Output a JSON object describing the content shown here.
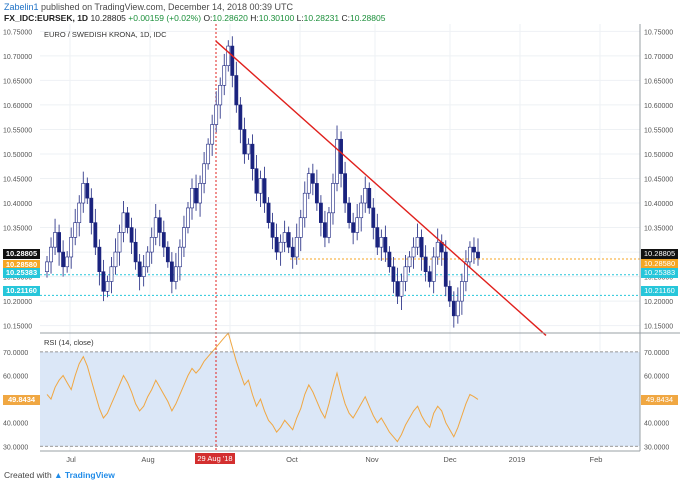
{
  "header": {
    "author": "Zabelin1",
    "published_text": " published on TradingView.com, December 14, 2018 00:39 UTC",
    "symbol": "FX_IDC:EURSEK, 1D",
    "last_value": "10.28805",
    "change": "+0.00159 (+0.02%)",
    "open_label": "O:",
    "open": "10.28620",
    "high_label": "H:",
    "high": "10.30100",
    "low_label": "L:",
    "low": "10.28231",
    "close_label": "C:",
    "close": "10.28805"
  },
  "pane_title": "EURO / SWEDISH KRONA, 1D, IDC",
  "rsi_title": "RSI (14, close)",
  "price_tags": {
    "current": "10.28805",
    "orange": "10.28580",
    "cyan_upper": "10.25383",
    "cyan_lower": "10.21160"
  },
  "rsi_tag": "49.8434",
  "highlight_date": "29 Aug '18",
  "footer": {
    "prefix": "Created with",
    "brand": "TradingView"
  },
  "colors": {
    "up_candle": "#ffffff",
    "down_candle": "#1a237e",
    "trendline": "#e0201c",
    "support_orange": "#f5a623",
    "support_cyan": "#26c6da",
    "rsi_line": "#f0a742",
    "rsi_band": "#dbe7f7",
    "current_tag": "#111111"
  },
  "chart_data": [
    {
      "type": "candlestick",
      "title": "EURO / SWEDISH KRONA, 1D, IDC",
      "y_ticks": [
        "10.75000",
        "10.70000",
        "10.65000",
        "10.60000",
        "10.55000",
        "10.50000",
        "10.45000",
        "10.40000",
        "10.35000",
        "10.30000",
        "10.25000",
        "10.20000",
        "10.15000"
      ],
      "ylim": [
        10.135,
        10.765
      ],
      "x_ticks": [
        "Jul",
        "Aug",
        "Oct",
        "Nov",
        "Dec",
        "2019",
        "Feb"
      ],
      "series": [
        {
          "name": "EURSEK",
          "close": [
            10.28,
            10.31,
            10.34,
            10.3,
            10.27,
            10.29,
            10.33,
            10.36,
            10.4,
            10.44,
            10.41,
            10.36,
            10.31,
            10.26,
            10.22,
            10.24,
            10.27,
            10.3,
            10.34,
            10.38,
            10.35,
            10.32,
            10.28,
            10.25,
            10.27,
            10.3,
            10.33,
            10.37,
            10.34,
            10.31,
            10.28,
            10.24,
            10.27,
            10.31,
            10.35,
            10.39,
            10.43,
            10.4,
            10.44,
            10.48,
            10.52,
            10.56,
            10.6,
            10.64,
            10.68,
            10.72,
            10.66,
            10.6,
            10.55,
            10.5,
            10.52,
            10.47,
            10.42,
            10.45,
            10.4,
            10.36,
            10.33,
            10.3,
            10.32,
            10.34,
            10.31,
            10.29,
            10.33,
            10.37,
            10.42,
            10.46,
            10.44,
            10.4,
            10.36,
            10.33,
            10.38,
            10.44,
            10.53,
            10.46,
            10.4,
            10.36,
            10.34,
            10.37,
            10.4,
            10.43,
            10.39,
            10.35,
            10.31,
            10.33,
            10.3,
            10.27,
            10.24,
            10.21,
            10.24,
            10.27,
            10.29,
            10.31,
            10.33,
            10.29,
            10.26,
            10.24,
            10.29,
            10.32,
            10.3,
            10.23,
            10.2,
            10.17,
            10.2,
            10.24,
            10.28,
            10.31,
            10.3,
            10.28805
          ]
        }
      ],
      "horizontal_lines": [
        10.2858,
        10.25383,
        10.2116
      ],
      "trendline": {
        "from": [
          "29 Aug '18",
          10.73
        ],
        "to": [
          "2019",
          10.13
        ]
      },
      "vertical_marker": "29 Aug '18"
    },
    {
      "type": "line",
      "title": "RSI (14, close)",
      "y_ticks": [
        "70.0000",
        "60.0000",
        "50.0000",
        "40.0000",
        "30.0000"
      ],
      "ylim": [
        28,
        78
      ],
      "band": [
        30,
        70
      ],
      "series": [
        {
          "name": "RSI",
          "values": [
            52,
            50,
            55,
            58,
            60,
            57,
            54,
            60,
            65,
            68,
            64,
            58,
            52,
            46,
            42,
            44,
            48,
            52,
            56,
            60,
            57,
            53,
            48,
            45,
            47,
            51,
            54,
            58,
            55,
            52,
            49,
            45,
            48,
            52,
            56,
            60,
            63,
            61,
            63,
            66,
            68,
            70,
            72,
            74,
            76,
            78,
            72,
            66,
            61,
            56,
            58,
            52,
            47,
            50,
            45,
            41,
            39,
            36,
            38,
            41,
            39,
            37,
            42,
            46,
            52,
            56,
            53,
            49,
            45,
            42,
            48,
            55,
            61,
            54,
            48,
            44,
            42,
            45,
            48,
            51,
            47,
            43,
            40,
            42,
            39,
            36,
            34,
            32,
            35,
            39,
            42,
            45,
            47,
            43,
            40,
            38,
            44,
            47,
            45,
            40,
            37,
            34,
            38,
            43,
            48,
            52,
            51,
            49.8434
          ]
        }
      ],
      "last_value": 49.8434
    }
  ]
}
